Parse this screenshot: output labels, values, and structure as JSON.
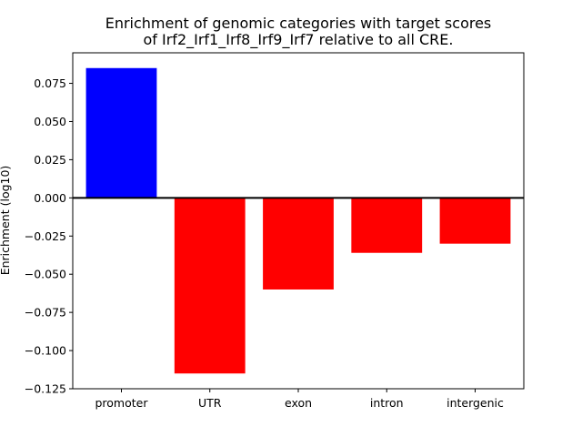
{
  "chart_data": {
    "type": "bar",
    "title": {
      "line1": "Enrichment of genomic categories with target scores",
      "line2": "of Irf2_Irf1_Irf8_Irf9_Irf7 relative to all CRE."
    },
    "xlabel": "",
    "ylabel": "Enrichment (log10)",
    "categories": [
      "promoter",
      "UTR",
      "exon",
      "intron",
      "intergenic"
    ],
    "values": [
      0.085,
      -0.115,
      -0.06,
      -0.036,
      -0.03
    ],
    "ylim": [
      -0.125,
      0.095
    ],
    "yticks": [
      0.075,
      0.05,
      0.025,
      0.0,
      -0.025,
      -0.05,
      -0.075,
      -0.1,
      -0.125
    ],
    "ytick_labels": [
      "0.075",
      "0.050",
      "0.025",
      "0.000",
      "−0.025",
      "−0.050",
      "−0.075",
      "−0.100",
      "−0.125"
    ],
    "colors": {
      "positive": "#0000ff",
      "negative": "#ff0000",
      "baseline": "#000000"
    },
    "grid": false,
    "legend": "none"
  }
}
